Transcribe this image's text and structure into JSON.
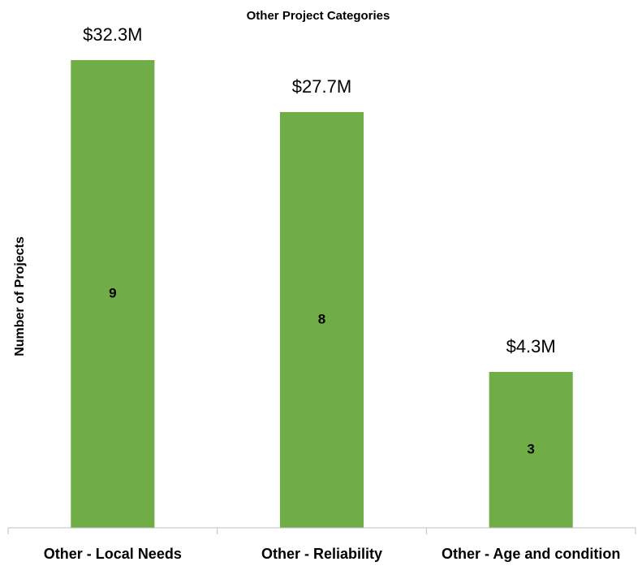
{
  "chart_data": {
    "type": "bar",
    "title": "Other Project Categories",
    "y_label": "Number of Projects",
    "categories": [
      "Other - Local Needs",
      "Other - Reliability",
      "Other - Age and condition"
    ],
    "values": [
      9,
      8,
      3
    ],
    "annotations": [
      "$32.3M",
      "$27.7M",
      "$4.3M"
    ],
    "color": "#70ad47",
    "ylim": [
      0,
      10
    ]
  }
}
